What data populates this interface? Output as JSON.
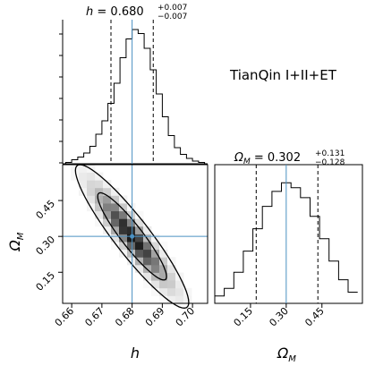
{
  "chart_data": [
    {
      "type": "histogram",
      "panel": "marginal-h",
      "title_param": "h",
      "title_value": "0.680",
      "title_plus": "+0.007",
      "title_minus": "−0.007",
      "x": [
        0.659,
        0.661,
        0.663,
        0.665,
        0.667,
        0.669,
        0.671,
        0.673,
        0.675,
        0.677,
        0.679,
        0.681,
        0.683,
        0.685,
        0.687,
        0.689,
        0.691,
        0.693,
        0.695,
        0.697,
        0.699,
        0.701,
        0.703
      ],
      "values": [
        0.01,
        0.03,
        0.05,
        0.08,
        0.13,
        0.22,
        0.32,
        0.45,
        0.6,
        0.79,
        0.93,
        1.0,
        0.97,
        0.86,
        0.7,
        0.52,
        0.35,
        0.21,
        0.12,
        0.07,
        0.04,
        0.02,
        0.01
      ],
      "truth": 0.68,
      "quantiles": [
        0.673,
        0.687
      ],
      "xlim": [
        0.657,
        0.705
      ]
    },
    {
      "type": "histogram",
      "panel": "marginal-omega",
      "title_param": "Ω",
      "title_param_sub": "M",
      "title_value": "0.302",
      "title_plus": "+0.131",
      "title_minus": "−0.128",
      "x": [
        0.02,
        0.06,
        0.1,
        0.14,
        0.18,
        0.22,
        0.26,
        0.3,
        0.34,
        0.38,
        0.42,
        0.46,
        0.5,
        0.54,
        0.58
      ],
      "values": [
        0.06,
        0.12,
        0.25,
        0.42,
        0.6,
        0.78,
        0.9,
        0.97,
        0.93,
        0.85,
        0.7,
        0.52,
        0.34,
        0.19,
        0.09
      ],
      "truth": 0.3,
      "quantiles": [
        0.174,
        0.433
      ],
      "xlim": [
        0.0,
        0.62
      ]
    },
    {
      "type": "heatmap",
      "panel": "joint",
      "xlabel": "h",
      "ylabel": "Ω",
      "ylabel_sub": "M",
      "x_ticks": [
        "0.66",
        "0.67",
        "0.68",
        "0.69",
        "0.70"
      ],
      "y_ticks": [
        "0.15",
        "0.30",
        "0.45"
      ],
      "xlim": [
        0.657,
        0.705
      ],
      "ylim": [
        0.02,
        0.6
      ],
      "truth": [
        0.68,
        0.3
      ],
      "correlation": -0.92,
      "sigma_x": 0.0075,
      "sigma_y": 0.12
    }
  ],
  "annotation": "TianQin I+II+ET",
  "colors": {
    "truth": "#4a90c2",
    "ink": "#000000"
  },
  "labels": {
    "h_title_prefix": "h = ",
    "omega_title_prefix": " = ",
    "xlabel_h": "h",
    "xlabel_omega": "Ω",
    "xlabel_omega_sub": "M",
    "ylabel_omega": "Ω",
    "ylabel_omega_sub": "M"
  }
}
